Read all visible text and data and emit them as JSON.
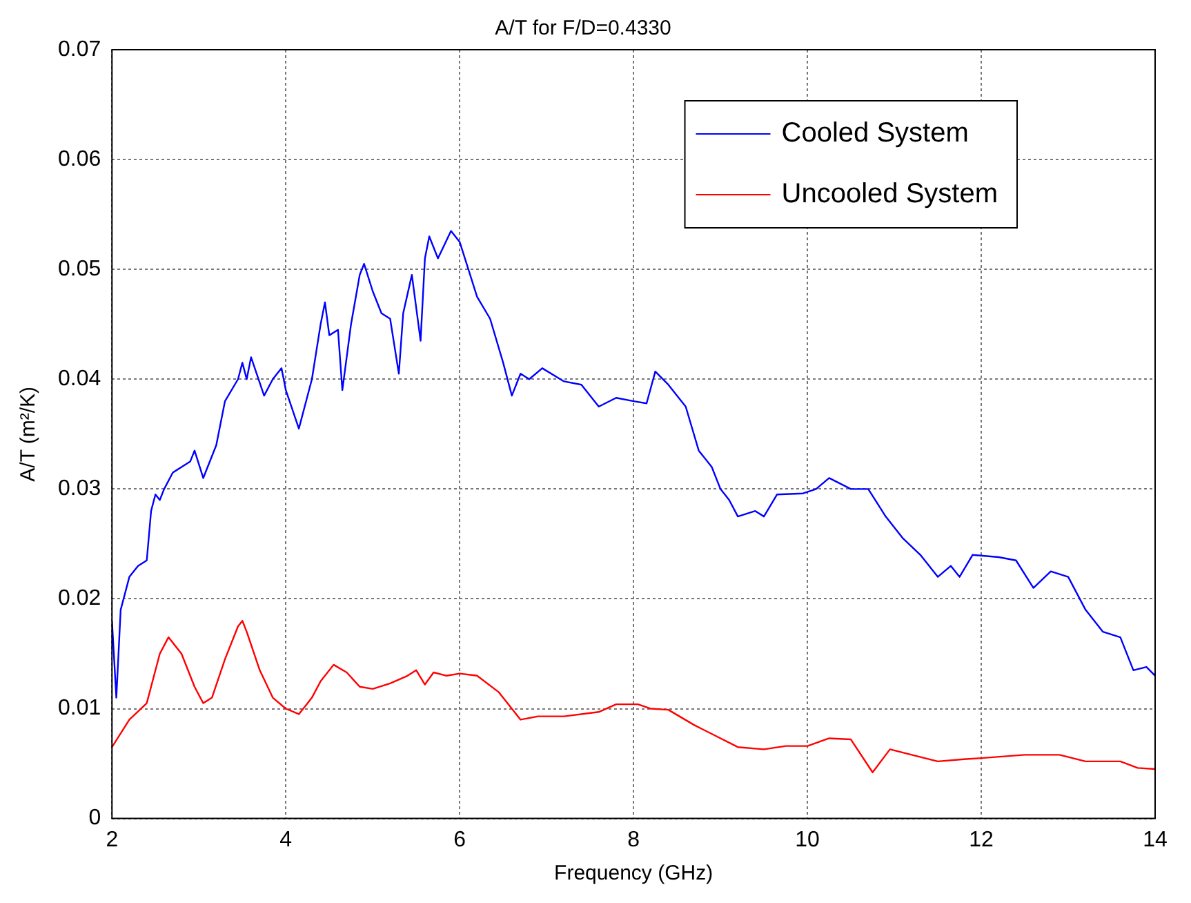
{
  "chart_data": {
    "type": "line",
    "title": "A/T for F/D=0.4330",
    "xlabel": "Frequency (GHz)",
    "ylabel": "A/T (m²/K)",
    "xlim": [
      2,
      14
    ],
    "xticks": [
      2,
      4,
      6,
      8,
      10,
      12,
      14
    ],
    "ylim": [
      0,
      0.07
    ],
    "yticks": [
      0,
      0.01,
      0.02,
      0.03,
      0.04,
      0.05,
      0.06,
      0.07
    ],
    "grid": true,
    "legend": "top right",
    "line_style": "solid",
    "marker": "none",
    "series": [
      {
        "name": "Cooled System",
        "color": "#0000ff",
        "x": [
          2.0,
          2.05,
          2.1,
          2.2,
          2.3,
          2.4,
          2.45,
          2.5,
          2.55,
          2.6,
          2.7,
          2.8,
          2.9,
          2.95,
          3.05,
          3.2,
          3.3,
          3.45,
          3.5,
          3.55,
          3.6,
          3.75,
          3.85,
          3.95,
          4.0,
          4.15,
          4.3,
          4.4,
          4.45,
          4.5,
          4.6,
          4.65,
          4.75,
          4.85,
          4.9,
          5.0,
          5.1,
          5.2,
          5.3,
          5.35,
          5.45,
          5.55,
          5.6,
          5.65,
          5.75,
          5.9,
          6.0,
          6.1,
          6.2,
          6.35,
          6.5,
          6.6,
          6.7,
          6.8,
          6.95,
          7.2,
          7.4,
          7.6,
          7.8,
          8.0,
          8.15,
          8.25,
          8.4,
          8.6,
          8.75,
          8.9,
          9.0,
          9.1,
          9.2,
          9.4,
          9.5,
          9.65,
          9.95,
          10.1,
          10.25,
          10.5,
          10.7,
          10.9,
          11.1,
          11.3,
          11.5,
          11.65,
          11.75,
          11.9,
          12.2,
          12.4,
          12.6,
          12.8,
          13.0,
          13.2,
          13.4,
          13.6,
          13.75,
          13.9,
          14.0
        ],
        "values": [
          0.018,
          0.011,
          0.019,
          0.022,
          0.023,
          0.0235,
          0.028,
          0.0295,
          0.029,
          0.03,
          0.0315,
          0.032,
          0.0325,
          0.0335,
          0.031,
          0.034,
          0.038,
          0.04,
          0.0415,
          0.04,
          0.042,
          0.0385,
          0.04,
          0.041,
          0.039,
          0.0355,
          0.04,
          0.045,
          0.047,
          0.044,
          0.0445,
          0.039,
          0.045,
          0.0495,
          0.0505,
          0.048,
          0.046,
          0.0455,
          0.0405,
          0.046,
          0.0495,
          0.0435,
          0.051,
          0.053,
          0.051,
          0.0535,
          0.0525,
          0.05,
          0.0475,
          0.0455,
          0.0415,
          0.0385,
          0.0405,
          0.04,
          0.041,
          0.0398,
          0.0395,
          0.0375,
          0.0383,
          0.038,
          0.0378,
          0.0407,
          0.0395,
          0.0375,
          0.0335,
          0.032,
          0.03,
          0.029,
          0.0275,
          0.028,
          0.0275,
          0.0295,
          0.0296,
          0.03,
          0.031,
          0.03,
          0.03,
          0.0275,
          0.0255,
          0.024,
          0.022,
          0.023,
          0.022,
          0.024,
          0.0238,
          0.0235,
          0.021,
          0.0225,
          0.022,
          0.019,
          0.017,
          0.0165,
          0.0135,
          0.0138,
          0.013
        ]
      },
      {
        "name": "Uncooled System",
        "color": "#ff0000",
        "x": [
          2.0,
          2.2,
          2.4,
          2.55,
          2.65,
          2.8,
          2.95,
          3.05,
          3.15,
          3.3,
          3.45,
          3.5,
          3.55,
          3.7,
          3.85,
          4.0,
          4.15,
          4.3,
          4.4,
          4.55,
          4.7,
          4.85,
          5.0,
          5.2,
          5.4,
          5.5,
          5.6,
          5.7,
          5.85,
          6.0,
          6.2,
          6.45,
          6.7,
          6.9,
          7.2,
          7.6,
          7.8,
          8.05,
          8.2,
          8.4,
          8.7,
          8.95,
          9.2,
          9.5,
          9.75,
          10.0,
          10.25,
          10.5,
          10.75,
          10.95,
          11.2,
          11.5,
          11.8,
          12.0,
          12.5,
          12.9,
          13.2,
          13.6,
          13.8,
          14.0
        ],
        "values": [
          0.0065,
          0.009,
          0.0105,
          0.015,
          0.0165,
          0.015,
          0.012,
          0.0105,
          0.011,
          0.0145,
          0.0175,
          0.018,
          0.017,
          0.0135,
          0.011,
          0.01,
          0.0095,
          0.011,
          0.0125,
          0.014,
          0.0133,
          0.012,
          0.0118,
          0.0123,
          0.013,
          0.0135,
          0.0122,
          0.0133,
          0.013,
          0.0132,
          0.013,
          0.0115,
          0.009,
          0.0093,
          0.0093,
          0.0097,
          0.0104,
          0.0104,
          0.01,
          0.0099,
          0.0085,
          0.0075,
          0.0065,
          0.0063,
          0.0066,
          0.0066,
          0.0073,
          0.0072,
          0.0042,
          0.0063,
          0.0058,
          0.0052,
          0.0054,
          0.0055,
          0.0058,
          0.0058,
          0.0052,
          0.0052,
          0.0046,
          0.0045
        ]
      }
    ]
  }
}
